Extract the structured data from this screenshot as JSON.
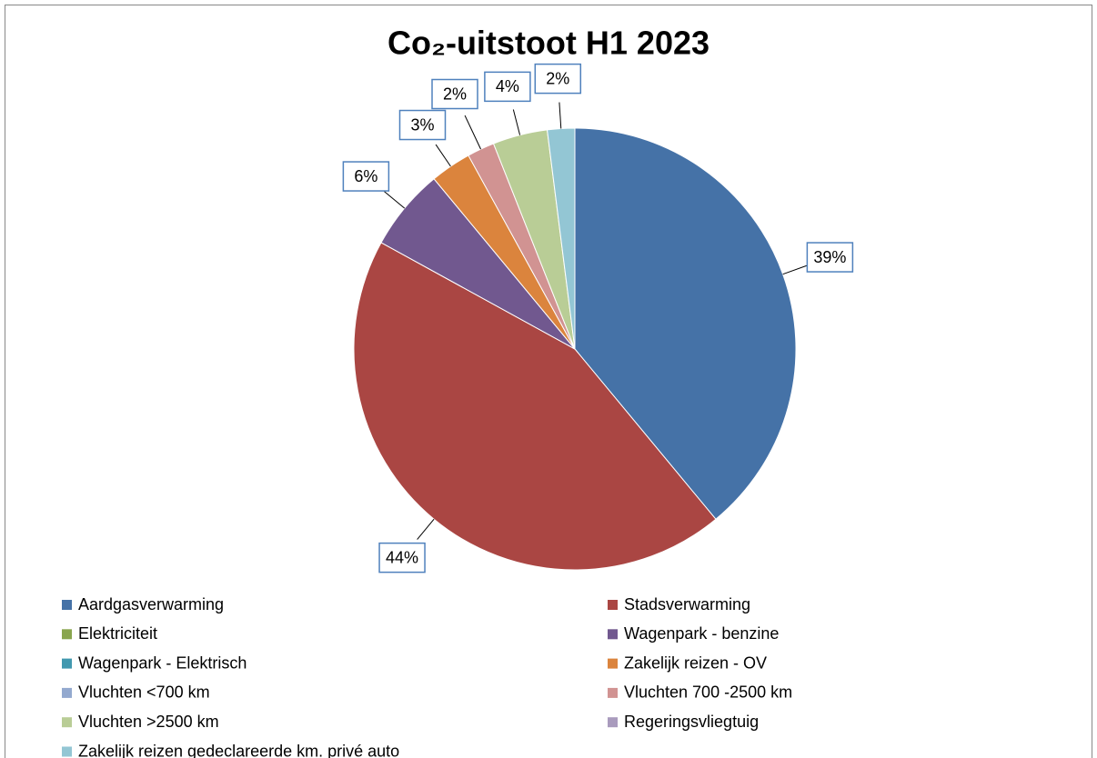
{
  "chart_data": {
    "type": "pie",
    "title": "Co₂-uitstoot H1 2023",
    "categories": [
      "Aardgasverwarming",
      "Stadsverwarming",
      "Elektriciteit",
      "Wagenpark - benzine",
      "Wagenpark - Elektrisch",
      "Zakelijk reizen - OV",
      "Vluchten <700 km",
      "Vluchten 700 -2500 km",
      "Vluchten >2500 km",
      "Regeringsvliegtuig",
      "Zakelijk reizen gedeclareerde km. privé auto"
    ],
    "values": [
      39,
      44,
      0,
      6,
      0,
      3,
      0,
      2,
      4,
      0,
      2
    ],
    "value_labels": [
      "39%",
      "44%",
      null,
      "6%",
      null,
      "3%",
      null,
      "2%",
      "4%",
      null,
      "2%"
    ],
    "colors": [
      "#4572a7",
      "#aa4643",
      "#89a54e",
      "#71588f",
      "#4198af",
      "#db843d",
      "#93a9cf",
      "#d19392",
      "#b9cd96",
      "#a99bbd",
      "#93c6d4"
    ],
    "legend": "bottom"
  }
}
